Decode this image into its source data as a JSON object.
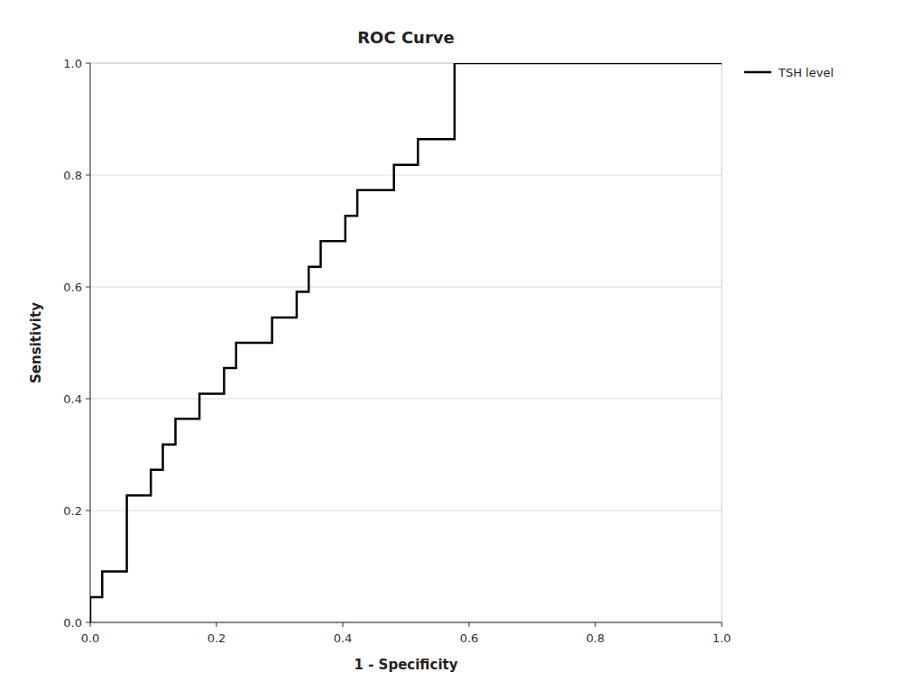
{
  "chart_data": {
    "type": "line",
    "title": "ROC Curve",
    "xlabel": "1 - Specificity",
    "ylabel": "Sensitivity",
    "xlim": [
      0.0,
      1.0
    ],
    "ylim": [
      0.0,
      1.0
    ],
    "xticks": [
      {
        "value": 0.0,
        "label": "0.0"
      },
      0.2,
      0.4,
      0.6,
      0.8,
      {
        "value": 1.0,
        "label": "1.0"
      }
    ],
    "yticks": [
      {
        "value": 0.0,
        "label": "0.0"
      },
      0.2,
      0.4,
      0.6,
      0.8,
      {
        "value": 1.0,
        "label": "1.0"
      }
    ],
    "grid": "y",
    "legend": "right",
    "x": [
      0.0,
      0.0,
      0.019,
      0.019,
      0.038,
      0.038,
      0.058,
      0.058,
      0.077,
      0.077,
      0.096,
      0.096,
      0.115,
      0.115,
      0.135,
      0.135,
      0.154,
      0.154,
      0.173,
      0.173,
      0.192,
      0.192,
      0.212,
      0.212,
      0.231,
      0.231,
      0.25,
      0.25,
      0.269,
      0.269,
      0.288,
      0.288,
      0.308,
      0.308,
      0.327,
      0.327,
      0.346,
      0.346,
      0.365,
      0.365,
      0.385,
      0.385,
      0.404,
      0.404,
      0.423,
      0.423,
      0.442,
      0.442,
      0.462,
      0.462,
      0.481,
      0.481,
      0.5,
      0.5,
      0.519,
      0.519,
      0.538,
      0.538,
      0.558,
      0.558,
      0.577,
      0.577,
      0.615,
      0.615,
      1.0
    ],
    "series": [
      {
        "name": "TSH level",
        "color": "#000000",
        "values": [
          0.0,
          0.045,
          0.045,
          0.091,
          0.091,
          0.091,
          0.091,
          0.227,
          0.227,
          0.227,
          0.227,
          0.273,
          0.273,
          0.318,
          0.318,
          0.364,
          0.364,
          0.364,
          0.364,
          0.409,
          0.409,
          0.409,
          0.409,
          0.455,
          0.455,
          0.5,
          0.5,
          0.5,
          0.5,
          0.5,
          0.5,
          0.545,
          0.545,
          0.545,
          0.545,
          0.591,
          0.591,
          0.636,
          0.636,
          0.682,
          0.682,
          0.682,
          0.682,
          0.727,
          0.727,
          0.773,
          0.773,
          0.773,
          0.773,
          0.773,
          0.773,
          0.818,
          0.818,
          0.818,
          0.818,
          0.864,
          0.864,
          0.864,
          0.864,
          0.864,
          0.864,
          1.0,
          1.0,
          1.0,
          1.0
        ]
      }
    ]
  }
}
